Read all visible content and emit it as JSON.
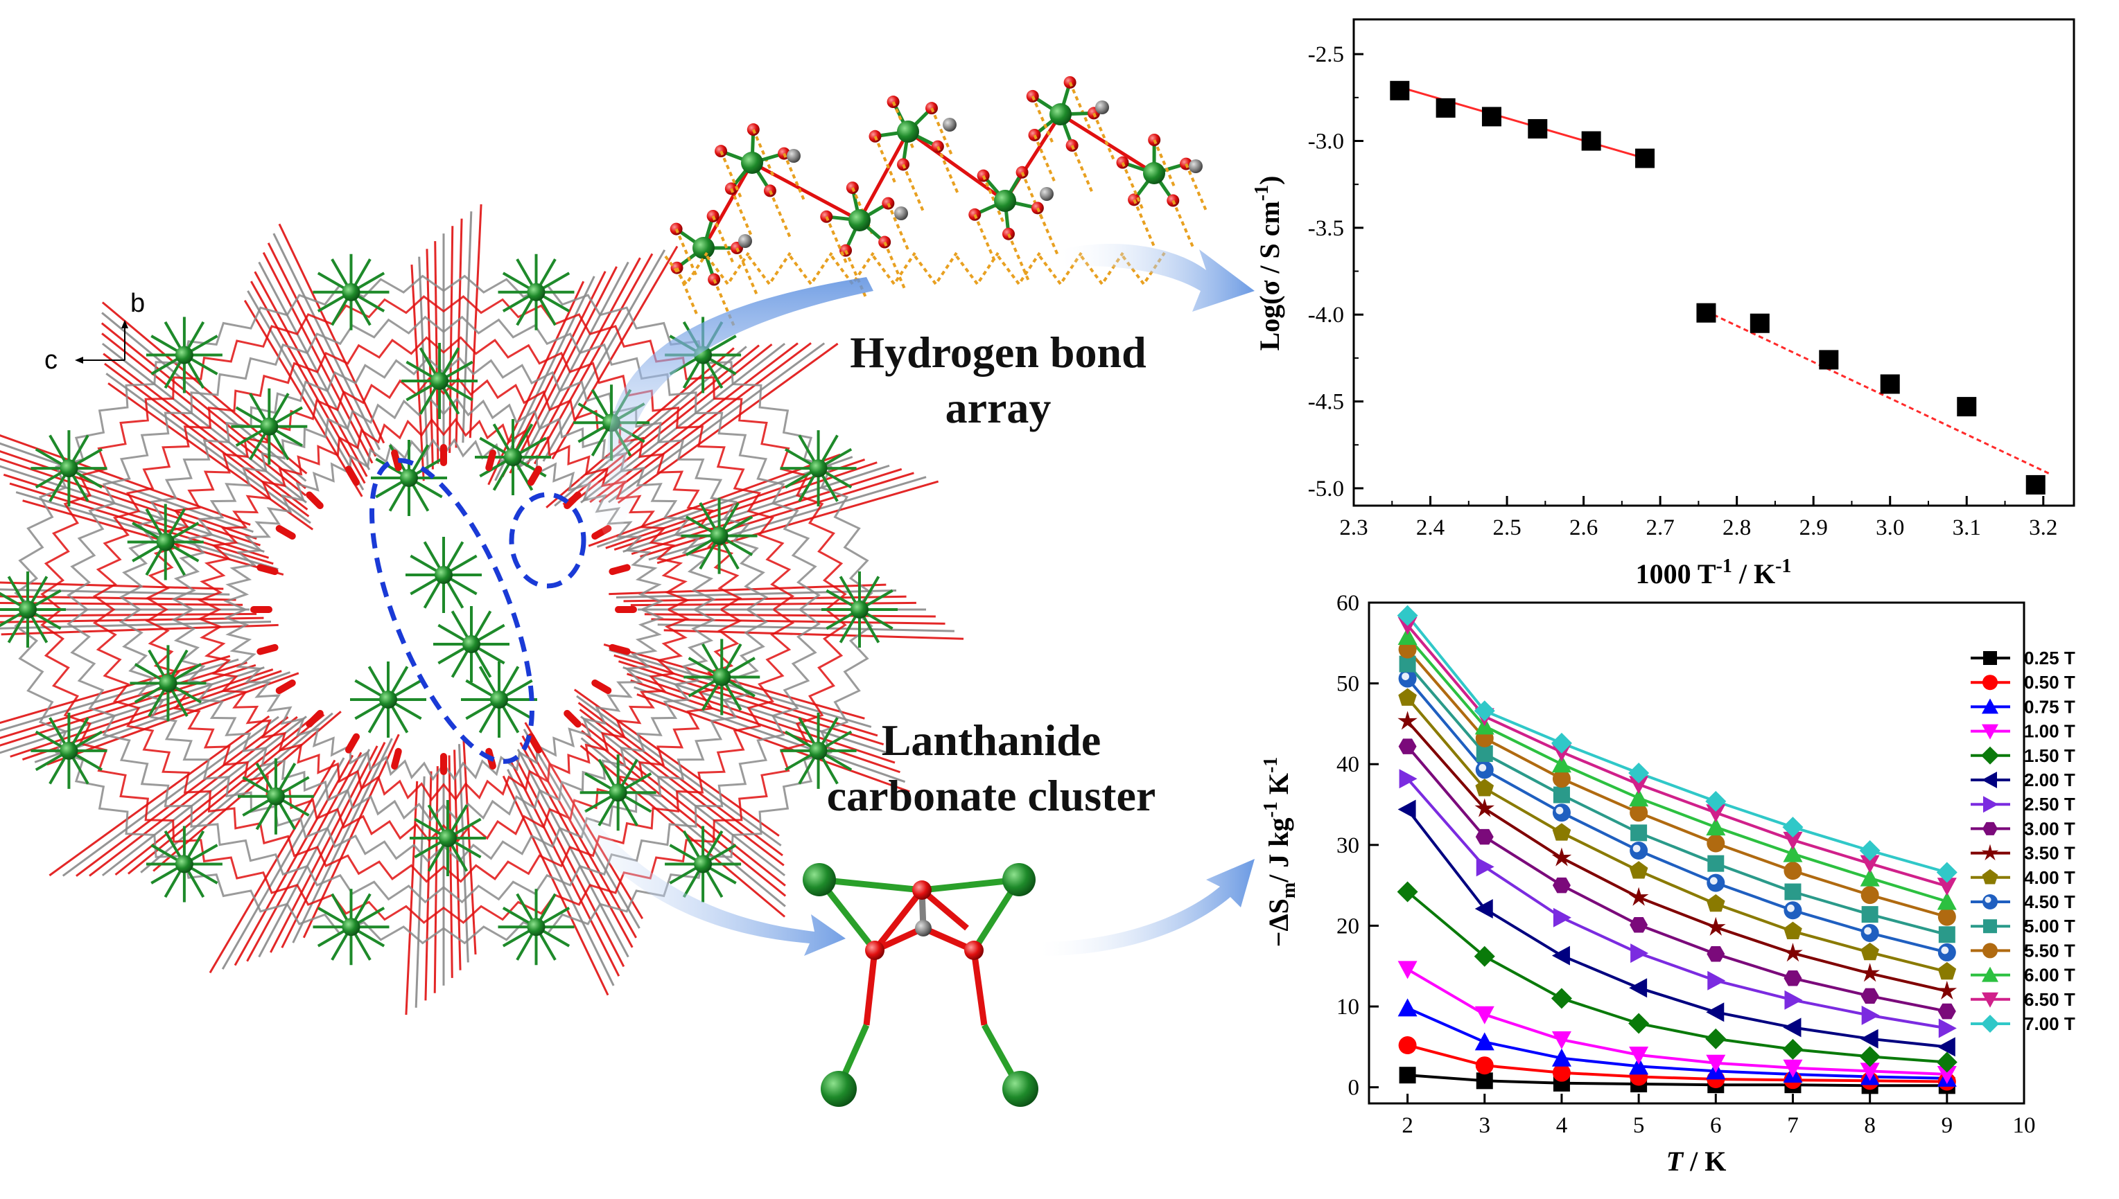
{
  "captions": {
    "hbond_line1": "Hydrogen bond",
    "hbond_line2": "array",
    "cluster_line1": "Lanthanide",
    "cluster_line2": "carbonate cluster"
  },
  "crystal_axes": {
    "b": "b",
    "c": "c"
  },
  "colors": {
    "metal": "#1e8a2a",
    "oxygen": "#e01010",
    "carbon": "#8a8a8a",
    "hbond": "#e8a020",
    "arrow": "#5b8fe0",
    "highlight": "#1a3ad6",
    "fitline": "#ff2a2a"
  },
  "chart_data": [
    {
      "type": "scatter",
      "title": "",
      "xlabel": "1000 T-1 / K-1",
      "ylabel": "Log(σ / S cm-1)",
      "xlim": [
        2.3,
        3.2
      ],
      "ylim": [
        -5.1,
        -2.3
      ],
      "xticks": [
        "2.3",
        "2.4",
        "2.5",
        "2.6",
        "2.7",
        "2.8",
        "2.9",
        "3.0",
        "3.1",
        "3.2"
      ],
      "yticks": [
        "-2.5",
        "-3.0",
        "-3.5",
        "-4.0",
        "-4.5",
        "-5.0"
      ],
      "series": [
        {
          "x": [
            2.36,
            2.42,
            2.48,
            2.54,
            2.61,
            2.68
          ],
          "y": [
            -2.71,
            -2.81,
            -2.86,
            -2.93,
            -3.0,
            -3.1
          ]
        },
        {
          "x": [
            2.76,
            2.83,
            2.92,
            3.0,
            3.1,
            3.19
          ],
          "y": [
            -3.99,
            -4.05,
            -4.26,
            -4.4,
            -4.53,
            -4.98
          ]
        }
      ],
      "fits": [
        {
          "x": [
            2.36,
            2.68
          ],
          "y": [
            -2.69,
            -3.1
          ]
        },
        {
          "x": [
            2.75,
            3.21
          ],
          "y": [
            -3.96,
            -4.92
          ]
        }
      ],
      "grid": false
    },
    {
      "type": "line",
      "title": "",
      "xlabel": "T / K",
      "ylabel": "−ΔSm / J kg-1 K-1",
      "xlim": [
        1.5,
        10
      ],
      "ylim": [
        -2,
        60
      ],
      "xticks": [
        "2",
        "3",
        "4",
        "5",
        "6",
        "7",
        "8",
        "9",
        "10"
      ],
      "yticks": [
        "0",
        "10",
        "20",
        "30",
        "40",
        "50",
        "60"
      ],
      "x": [
        2,
        3,
        4,
        5,
        6,
        7,
        8,
        9
      ],
      "legend_position": "right",
      "series": [
        {
          "name": "0.25 T",
          "color": "#000000",
          "marker": "square",
          "values": [
            1.5,
            0.8,
            0.5,
            0.4,
            0.3,
            0.3,
            0.2,
            0.2
          ]
        },
        {
          "name": "0.50 T",
          "color": "#ff0000",
          "marker": "circle",
          "values": [
            5.2,
            2.7,
            1.8,
            1.3,
            1.0,
            0.9,
            0.8,
            0.7
          ]
        },
        {
          "name": "0.75 T",
          "color": "#0000ff",
          "marker": "triangle-up",
          "values": [
            9.8,
            5.6,
            3.6,
            2.6,
            2.0,
            1.6,
            1.3,
            1.1
          ]
        },
        {
          "name": "1.00 T",
          "color": "#ff00ff",
          "marker": "triangle-down",
          "values": [
            14.6,
            9.0,
            5.9,
            4.0,
            3.0,
            2.4,
            2.0,
            1.6
          ]
        },
        {
          "name": "1.50 T",
          "color": "#0a7a0a",
          "marker": "diamond",
          "values": [
            24.2,
            16.2,
            11.0,
            7.9,
            6.0,
            4.7,
            3.8,
            3.1
          ]
        },
        {
          "name": "2.00 T",
          "color": "#000080",
          "marker": "triangle-left",
          "values": [
            34.4,
            22.1,
            16.3,
            12.3,
            9.3,
            7.4,
            6.0,
            5.0
          ]
        },
        {
          "name": "2.50 T",
          "color": "#7b2be0",
          "marker": "triangle-right",
          "values": [
            38.2,
            27.3,
            21.0,
            16.6,
            13.2,
            10.8,
            8.9,
            7.3
          ]
        },
        {
          "name": "3.00 T",
          "color": "#7b0a7b",
          "marker": "hexagon",
          "values": [
            42.2,
            31.0,
            25.0,
            20.1,
            16.5,
            13.5,
            11.3,
            9.4
          ]
        },
        {
          "name": "3.50 T",
          "color": "#800000",
          "marker": "star",
          "values": [
            45.3,
            34.5,
            28.4,
            23.5,
            19.8,
            16.6,
            14.1,
            11.9
          ]
        },
        {
          "name": "4.00 T",
          "color": "#8a7a00",
          "marker": "pentagon",
          "values": [
            48.2,
            37.0,
            31.5,
            26.8,
            22.7,
            19.3,
            16.7,
            14.3
          ]
        },
        {
          "name": "4.50 T",
          "color": "#1f5fc0",
          "marker": "circle-ring",
          "values": [
            50.6,
            39.3,
            34.0,
            29.3,
            25.3,
            21.9,
            19.1,
            16.7
          ]
        },
        {
          "name": "5.00 T",
          "color": "#2a9a8a",
          "marker": "square",
          "values": [
            52.4,
            41.3,
            36.2,
            31.5,
            27.7,
            24.2,
            21.4,
            18.9
          ]
        },
        {
          "name": "5.50 T",
          "color": "#b06a10",
          "marker": "circle",
          "values": [
            54.2,
            43.2,
            38.2,
            34.0,
            30.2,
            26.8,
            23.8,
            21.1
          ]
        },
        {
          "name": "6.00 T",
          "color": "#2cc040",
          "marker": "triangle-up",
          "values": [
            55.8,
            44.7,
            40.0,
            35.8,
            32.2,
            28.9,
            25.9,
            23.0
          ]
        },
        {
          "name": "6.50 T",
          "color": "#d0208a",
          "marker": "triangle-down",
          "values": [
            57.2,
            45.9,
            41.5,
            37.5,
            34.0,
            30.6,
            27.7,
            24.9
          ]
        },
        {
          "name": "7.00 T",
          "color": "#30c8c8",
          "marker": "diamond",
          "values": [
            58.4,
            46.6,
            42.6,
            38.9,
            35.4,
            32.2,
            29.3,
            26.6
          ]
        }
      ]
    }
  ]
}
